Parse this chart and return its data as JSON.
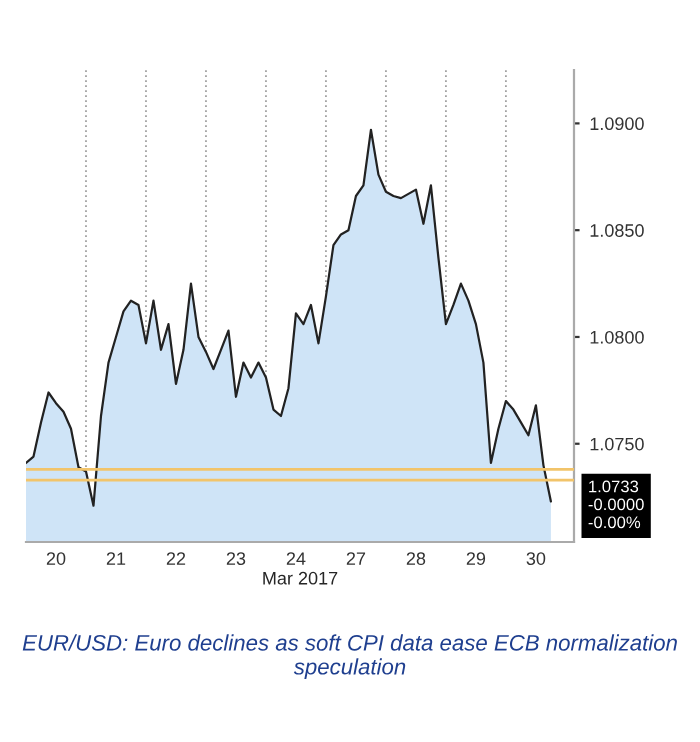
{
  "chart_data": {
    "type": "area",
    "xlabel": "Mar 2017",
    "categories": [
      null,
      null,
      null,
      null,
      "20",
      null,
      null,
      null,
      null,
      null,
      null,
      null,
      "21",
      null,
      null,
      null,
      null,
      null,
      null,
      null,
      "22",
      null,
      null,
      null,
      null,
      null,
      null,
      null,
      "23",
      null,
      null,
      null,
      null,
      null,
      null,
      null,
      "24",
      null,
      null,
      null,
      null,
      null,
      null,
      null,
      "27",
      null,
      null,
      null,
      null,
      null,
      null,
      null,
      "28",
      null,
      null,
      null,
      null,
      null,
      null,
      null,
      "29",
      null,
      null,
      null,
      null,
      null,
      null,
      null,
      "30",
      null,
      null
    ],
    "series": [
      {
        "color": "#cfe4f7",
        "values": [
          1.0741,
          1.0744,
          1.076,
          1.0774,
          1.0769,
          1.0765,
          1.0757,
          1.0739,
          1.0737,
          1.0721,
          1.0763,
          1.0788,
          1.08,
          1.0812,
          1.0817,
          1.0815,
          1.0797,
          1.0817,
          1.0794,
          1.0806,
          1.0778,
          1.0794,
          1.0825,
          1.08,
          1.0793,
          1.0785,
          1.0794,
          1.0803,
          1.0772,
          1.0788,
          1.0781,
          1.0788,
          1.0781,
          1.0766,
          1.0763,
          1.0776,
          1.0811,
          1.0806,
          1.0815,
          1.0797,
          1.0819,
          1.0843,
          1.0848,
          1.085,
          1.0866,
          1.0871,
          1.0897,
          1.0876,
          1.0868,
          1.0866,
          1.0865,
          1.0867,
          1.0869,
          1.0853,
          1.0871,
          1.0837,
          1.0806,
          1.0815,
          1.0825,
          1.0817,
          1.0806,
          1.0788,
          1.0741,
          1.0757,
          1.077,
          1.0766,
          1.076,
          1.0754,
          1.0768,
          1.074,
          1.0723
        ]
      }
    ],
    "ylim": [
      1.0704,
      1.0925
    ],
    "yticks": [
      {
        "value": 1.075,
        "label": "1.0750"
      },
      {
        "value": 1.08,
        "label": "1.0800"
      },
      {
        "value": 1.085,
        "label": "1.0850"
      },
      {
        "value": 1.09,
        "label": "1.0900"
      }
    ],
    "grid": "x",
    "ref_lines": [
      {
        "axis": "y",
        "value": 1.0738,
        "label": null,
        "color": "#f2c46a"
      },
      {
        "axis": "y",
        "value": 1.0733,
        "label": "1.0733\n-0.0000\n-0.00%",
        "color": "#f2c46a"
      }
    ],
    "annotations": [
      "EUR/USD: Euro declines as soft CPI data ease ECB normalization speculation"
    ]
  }
}
